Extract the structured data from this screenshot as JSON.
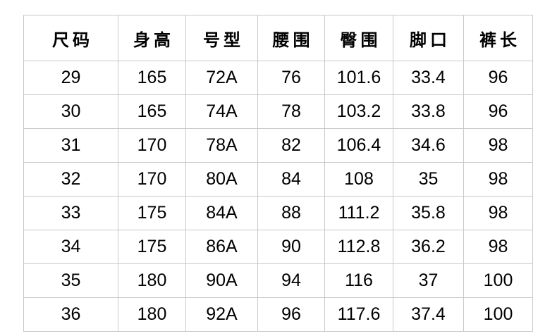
{
  "chart_data": {
    "type": "table",
    "columns": [
      "尺码",
      "身高",
      "号型",
      "腰围",
      "臀围",
      "脚口",
      "裤长"
    ],
    "rows": [
      [
        "29",
        "165",
        "72A",
        "76",
        "101.6",
        "33.4",
        "96"
      ],
      [
        "30",
        "165",
        "74A",
        "78",
        "103.2",
        "33.8",
        "96"
      ],
      [
        "31",
        "170",
        "78A",
        "82",
        "106.4",
        "34.6",
        "98"
      ],
      [
        "32",
        "170",
        "80A",
        "84",
        "108",
        "35",
        "98"
      ],
      [
        "33",
        "175",
        "84A",
        "88",
        "111.2",
        "35.8",
        "98"
      ],
      [
        "34",
        "175",
        "86A",
        "90",
        "112.8",
        "36.2",
        "98"
      ],
      [
        "35",
        "180",
        "90A",
        "94",
        "116",
        "37",
        "100"
      ],
      [
        "36",
        "180",
        "92A",
        "96",
        "117.6",
        "37.4",
        "100"
      ]
    ],
    "layout": {
      "grid": true,
      "header_bold": true,
      "cell_alignment": "center"
    }
  },
  "style": {
    "border_color": "#c9c9c9",
    "text_color": "#000000",
    "background_color": "#ffffff"
  }
}
